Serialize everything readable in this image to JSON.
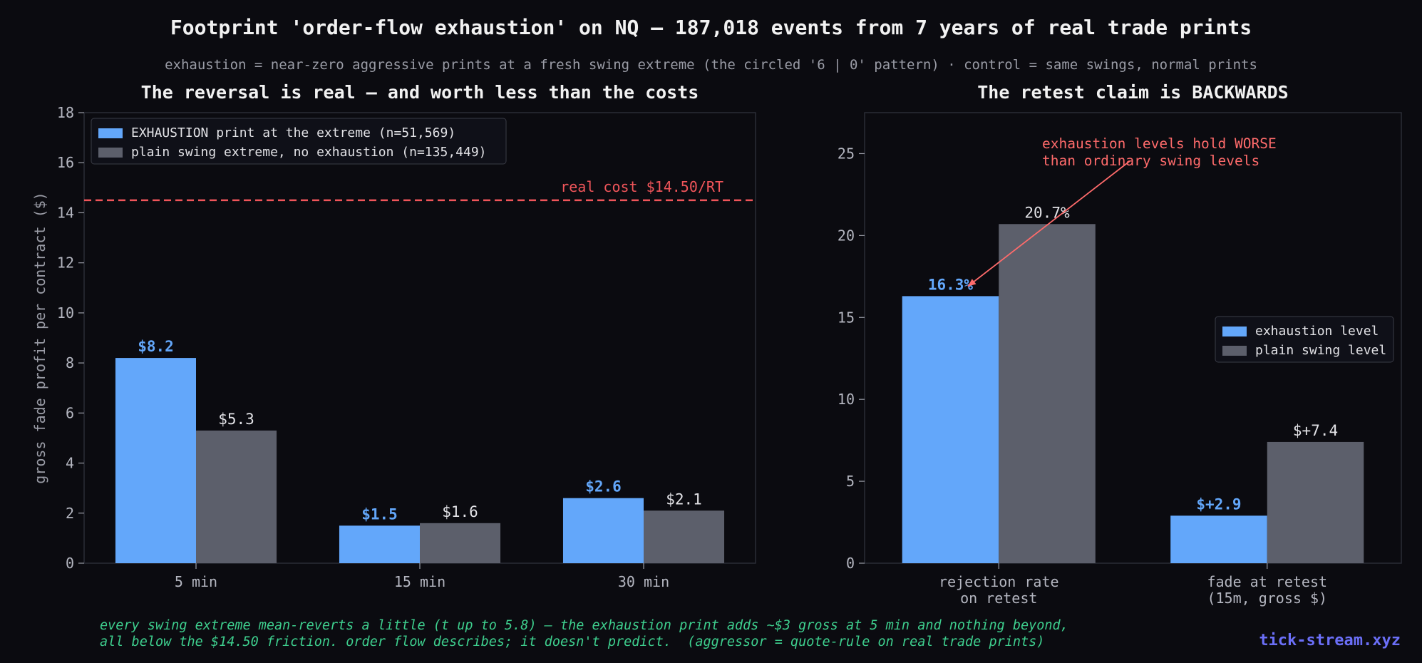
{
  "title": "Footprint 'order-flow exhaustion' on NQ — 187,018 events from 7 years of real trade prints",
  "subtitle": "exhaustion = near-zero aggressive prints at a fresh swing extreme (the circled '6 | 0' pattern) · control = same swings, normal prints",
  "footer": {
    "line1": "every swing extreme mean-reverts a little (t up to 5.8) — the exhaustion print adds ~$3 gross at 5 min and nothing beyond,",
    "line2": "all below the $14.50 friction. order flow describes; it doesn't predict.  (aggressor = quote-rule on real trade prints)"
  },
  "brand": "tick-stream.xyz",
  "colors": {
    "exhaustion": "#63a7fa",
    "plain": "#5c5f6b",
    "cost_line": "#f0555a",
    "annotation": "#ff6b6b",
    "background": "#0b0b10"
  },
  "chart_data": [
    {
      "type": "bar",
      "title": "The reversal is real — and worth less than the costs",
      "xlabel": "",
      "ylabel": "gross fade profit per contract ($)",
      "categories": [
        "5 min",
        "15 min",
        "30 min"
      ],
      "series": [
        {
          "name": "EXHAUSTION print at the extreme  (n=51,569)",
          "values": [
            8.2,
            1.5,
            2.6
          ],
          "labels": [
            "$8.2",
            "$1.5",
            "$2.6"
          ]
        },
        {
          "name": "plain swing extreme, no exhaustion  (n=135,449)",
          "values": [
            5.3,
            1.6,
            2.1
          ],
          "labels": [
            "$5.3",
            "$1.6",
            "$2.1"
          ]
        }
      ],
      "ylim": [
        0,
        18
      ],
      "yticks": [
        0,
        2,
        4,
        6,
        8,
        10,
        12,
        14,
        16,
        18
      ],
      "reference_line": {
        "value": 14.5,
        "label": "real cost $14.50/RT"
      },
      "legend": "top-left",
      "grid": false
    },
    {
      "type": "bar",
      "title": "The retest claim is BACKWARDS",
      "xlabel": "",
      "ylabel": "",
      "categories": [
        "rejection rate\non retest",
        "fade at retest\n(15m, gross $)"
      ],
      "series": [
        {
          "name": "exhaustion level",
          "values": [
            16.3,
            2.9
          ],
          "labels": [
            "16.3%",
            "$+2.9"
          ]
        },
        {
          "name": "plain swing level",
          "values": [
            20.7,
            7.4
          ],
          "labels": [
            "20.7%",
            "$+7.4"
          ]
        }
      ],
      "ylim": [
        0,
        27.5
      ],
      "yticks": [
        0,
        5,
        10,
        15,
        20,
        25
      ],
      "annotation": {
        "text": "exhaustion levels hold WORSE\nthan ordinary swing levels",
        "points_to": {
          "category": 0,
          "value": 16.9
        }
      },
      "legend": "center-right",
      "grid": false
    }
  ]
}
